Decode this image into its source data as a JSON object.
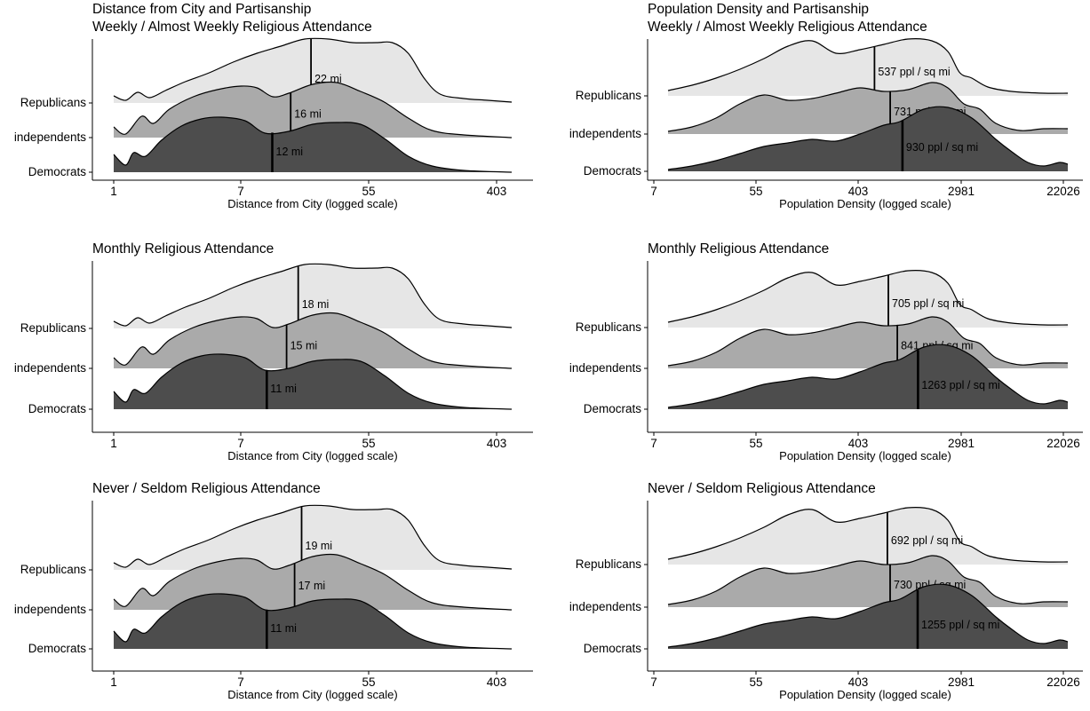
{
  "figure": {
    "colors": {
      "Republicans": "#e6e6e6",
      "independents": "#aaaaaa",
      "Democrats": "#4d4d4d",
      "outline": "#000000"
    }
  },
  "chart_data": [
    {
      "type": "area",
      "variant": "ridgeline",
      "title": "Distance from City and Partisanship",
      "subtitle": "Weekly / Almost Weekly Religious Attendance",
      "xlabel": "Distance from City (logged scale)",
      "x_scale": "log",
      "xlim": [
        1,
        403
      ],
      "x_ticks": [
        "1",
        "7",
        "55",
        "403"
      ],
      "groups": [
        "Republicans",
        "independents",
        "Democrats"
      ],
      "medians": [
        {
          "group": "Republicans",
          "x": 22,
          "label": "22 mi"
        },
        {
          "group": "independents",
          "x": 16,
          "label": "16 mi"
        },
        {
          "group": "Democrats",
          "x": 12,
          "label": "12 mi"
        }
      ]
    },
    {
      "type": "area",
      "variant": "ridgeline",
      "title": "Population Density and Partisanship",
      "subtitle": "Weekly / Almost Weekly Religious Attendance",
      "xlabel": "Population Density (logged scale)",
      "x_scale": "log",
      "xlim": [
        7,
        22026
      ],
      "x_ticks": [
        "7",
        "55",
        "403",
        "2981",
        "22026"
      ],
      "groups": [
        "Republicans",
        "independents",
        "Democrats"
      ],
      "medians": [
        {
          "group": "Republicans",
          "x": 537,
          "label": "537 ppl / sq mi"
        },
        {
          "group": "independents",
          "x": 731,
          "label": "731 ppl / sq mi"
        },
        {
          "group": "Democrats",
          "x": 930,
          "label": "930 ppl / sq mi"
        }
      ]
    },
    {
      "type": "area",
      "variant": "ridgeline",
      "title": "Monthly Religious Attendance",
      "subtitle": "",
      "xlabel": "Distance from City (logged scale)",
      "x_scale": "log",
      "xlim": [
        1,
        403
      ],
      "x_ticks": [
        "1",
        "7",
        "55",
        "403"
      ],
      "groups": [
        "Republicans",
        "independents",
        "Democrats"
      ],
      "medians": [
        {
          "group": "Republicans",
          "x": 18,
          "label": "18 mi"
        },
        {
          "group": "independents",
          "x": 15,
          "label": "15 mi"
        },
        {
          "group": "Democrats",
          "x": 11,
          "label": "11 mi"
        }
      ]
    },
    {
      "type": "area",
      "variant": "ridgeline",
      "title": "Monthly Religious Attendance",
      "subtitle": "",
      "xlabel": "Population Density (logged scale)",
      "x_scale": "log",
      "xlim": [
        7,
        22026
      ],
      "x_ticks": [
        "7",
        "55",
        "403",
        "2981",
        "22026"
      ],
      "groups": [
        "Republicans",
        "independents",
        "Democrats"
      ],
      "medians": [
        {
          "group": "Republicans",
          "x": 705,
          "label": "705 ppl / sq mi"
        },
        {
          "group": "independents",
          "x": 841,
          "label": "841 ppl / sq mi"
        },
        {
          "group": "Democrats",
          "x": 1263,
          "label": "1263 ppl / sq mi"
        }
      ]
    },
    {
      "type": "area",
      "variant": "ridgeline",
      "title": "Never / Seldom Religious Attendance",
      "subtitle": "",
      "xlabel": "Distance from City (logged scale)",
      "x_scale": "log",
      "xlim": [
        1,
        403
      ],
      "x_ticks": [
        "1",
        "7",
        "55",
        "403"
      ],
      "groups": [
        "Republicans",
        "independents",
        "Democrats"
      ],
      "medians": [
        {
          "group": "Republicans",
          "x": 19,
          "label": "19 mi"
        },
        {
          "group": "independents",
          "x": 17,
          "label": "17 mi"
        },
        {
          "group": "Democrats",
          "x": 11,
          "label": "11 mi"
        }
      ]
    },
    {
      "type": "area",
      "variant": "ridgeline",
      "title": "Never / Seldom Religious Attendance",
      "subtitle": "",
      "xlabel": "Population Density (logged scale)",
      "x_scale": "log",
      "xlim": [
        7,
        22026
      ],
      "x_ticks": [
        "7",
        "55",
        "403",
        "2981",
        "22026"
      ],
      "groups": [
        "Republicans",
        "independents",
        "Democrats"
      ],
      "medians": [
        {
          "group": "Republicans",
          "x": 692,
          "label": "692 ppl / sq mi"
        },
        {
          "group": "independents",
          "x": 730,
          "label": "730 ppl / sq mi"
        },
        {
          "group": "Democrats",
          "x": 1255,
          "label": "1255 ppl / sq mi"
        }
      ]
    }
  ]
}
